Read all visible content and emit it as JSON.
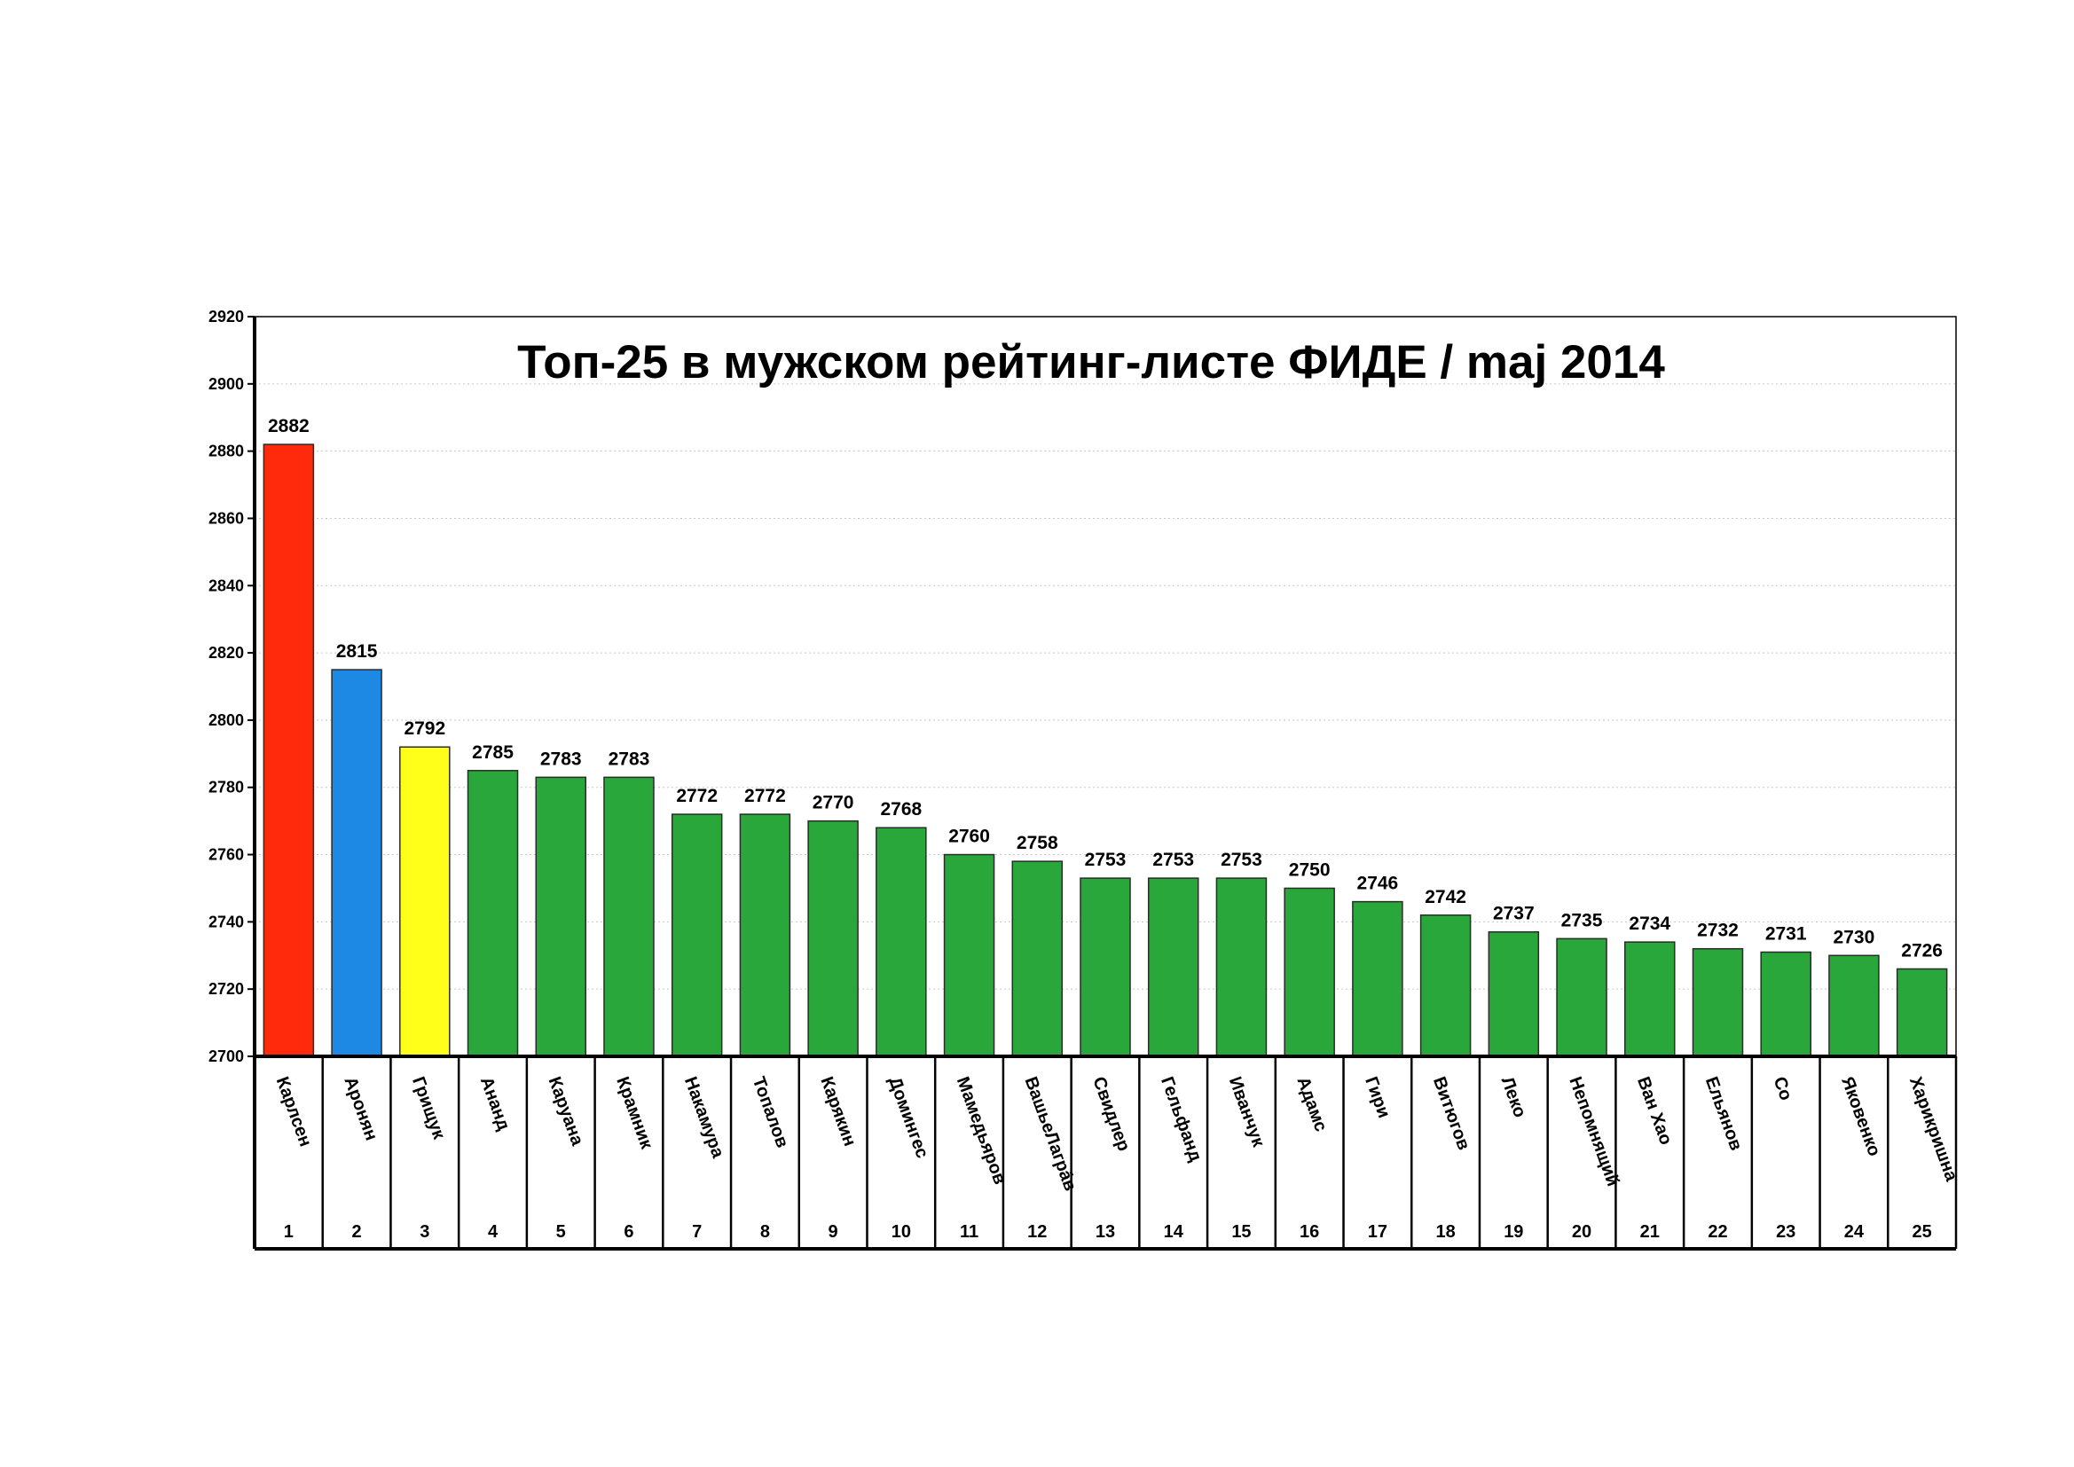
{
  "chart_data": {
    "type": "bar",
    "title": "Топ-25 в мужском рейтинг-листе ФИДЕ / maj 2014",
    "xlabel": "",
    "ylabel": "",
    "ylim": [
      2700,
      2920
    ],
    "yticks": [
      2700,
      2720,
      2740,
      2760,
      2780,
      2800,
      2820,
      2840,
      2860,
      2880,
      2900,
      2920
    ],
    "grid": true,
    "legend": "none",
    "categories": [
      "Карлсен",
      "Аронян",
      "Грищук",
      "Ананд",
      "Каруана",
      "Крамник",
      "Накамура",
      "Топалов",
      "Карякин",
      "Домингес",
      "Мамедьяров",
      "ВашьеЛагрáв",
      "Свидлер",
      "Гельфанд",
      "Иванчук",
      "Адамс",
      "Гири",
      "Витюгов",
      "Леко",
      "Непомнящий",
      "Ван Хао",
      "Ельянов",
      "Со",
      "Яковенко",
      "Харикришна"
    ],
    "ranks": [
      "1",
      "2",
      "3",
      "4",
      "5",
      "6",
      "7",
      "8",
      "9",
      "10",
      "11",
      "12",
      "13",
      "14",
      "15",
      "16",
      "17",
      "18",
      "19",
      "20",
      "21",
      "22",
      "23",
      "24",
      "25"
    ],
    "values": [
      2882,
      2815,
      2792,
      2785,
      2783,
      2783,
      2772,
      2772,
      2770,
      2768,
      2760,
      2758,
      2753,
      2753,
      2753,
      2750,
      2746,
      2742,
      2737,
      2735,
      2734,
      2732,
      2731,
      2730,
      2726
    ],
    "colors": [
      "#ff2a0c",
      "#1e88e5",
      "#ffff1a",
      "#2aa73a",
      "#2aa73a",
      "#2aa73a",
      "#2aa73a",
      "#2aa73a",
      "#2aa73a",
      "#2aa73a",
      "#2aa73a",
      "#2aa73a",
      "#2aa73a",
      "#2aa73a",
      "#2aa73a",
      "#2aa73a",
      "#2aa73a",
      "#2aa73a",
      "#2aa73a",
      "#2aa73a",
      "#2aa73a",
      "#2aa73a",
      "#2aa73a",
      "#2aa73a",
      "#2aa73a"
    ]
  }
}
